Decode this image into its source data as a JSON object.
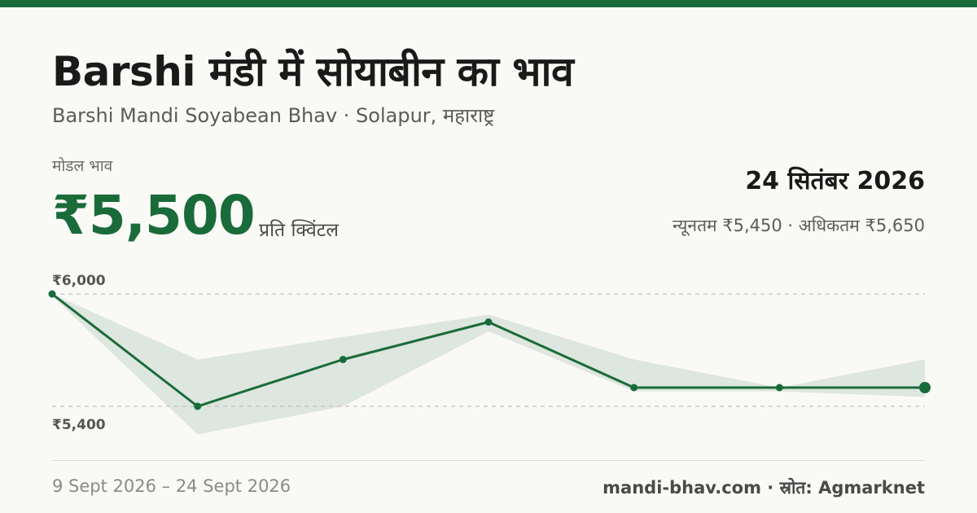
{
  "header": {
    "title": "Barshi मंडी में सोयाबीन का भाव",
    "subtitle": "Barshi Mandi Soyabean Bhav · Solapur, महाराष्ट्र"
  },
  "summary": {
    "model_label": "मोडल भाव",
    "model_price": "₹5,500",
    "unit": "प्रति क्विंटल",
    "date": "24 सितंबर 2026",
    "min_max": "न्यूनतम ₹5,450 · अधिकतम ₹5,650"
  },
  "footer": {
    "date_range": "9 Sept 2026 – 24 Sept 2026",
    "source": "mandi-bhav.com · स्रोत: Agmarknet"
  },
  "colors": {
    "brand": "#1a6b3a",
    "band": "#dde6df",
    "grid": "#b8b8b0"
  },
  "chart_data": {
    "type": "line",
    "y_ticks": [
      {
        "value": 6000,
        "label": "₹6,000"
      },
      {
        "value": 5400,
        "label": "₹5,400"
      }
    ],
    "ylim": [
      5400,
      6000
    ],
    "x": [
      0,
      1,
      2,
      3,
      4,
      5,
      6
    ],
    "series": [
      {
        "values": [
          6000,
          5400,
          5650,
          5850,
          5500,
          5500,
          5500
        ]
      }
    ],
    "band": {
      "upper": [
        6000,
        5650,
        5770,
        5890,
        5650,
        5500,
        5650
      ],
      "lower": [
        5990,
        5250,
        5400,
        5800,
        5480,
        5480,
        5450
      ]
    }
  }
}
